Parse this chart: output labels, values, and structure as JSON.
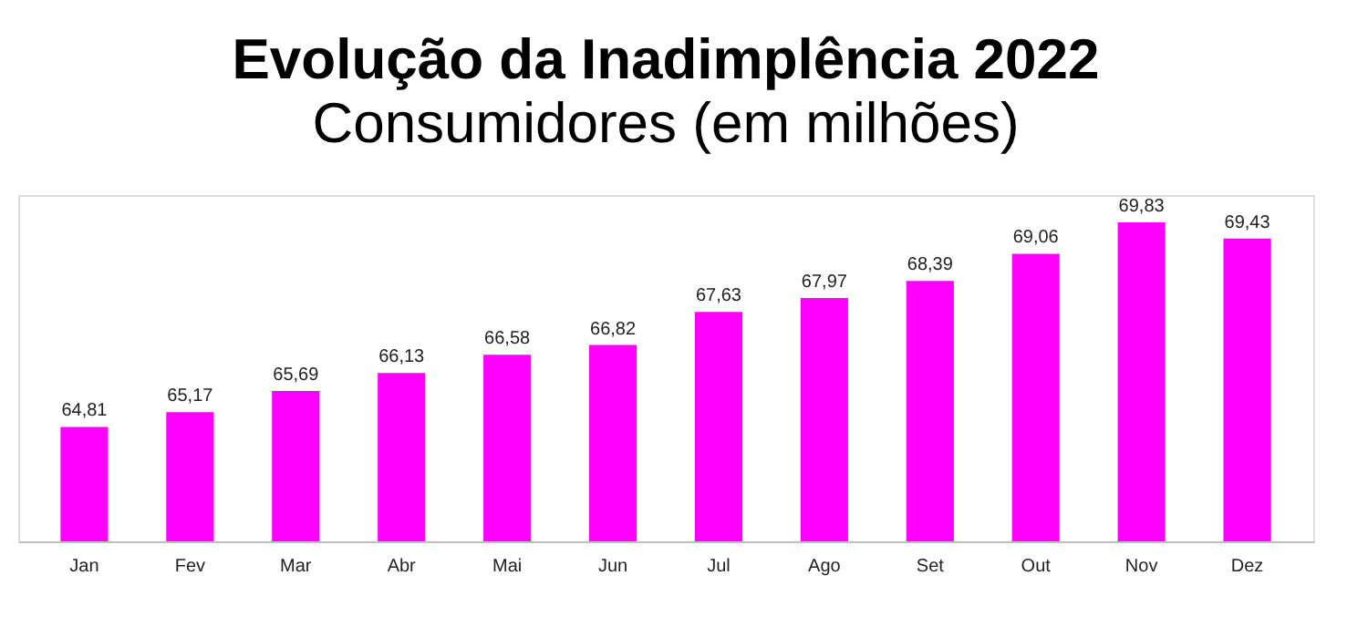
{
  "chart_data": {
    "type": "bar",
    "title": "Evolução da Inadimplência 2022",
    "subtitle": "Consumidores (em milhões)",
    "categories": [
      "Jan",
      "Fev",
      "Mar",
      "Abr",
      "Mai",
      "Jun",
      "Jul",
      "Ago",
      "Set",
      "Out",
      "Nov",
      "Dez"
    ],
    "values": [
      64.81,
      65.17,
      65.69,
      66.13,
      66.58,
      66.82,
      67.63,
      67.97,
      68.39,
      69.06,
      69.83,
      69.43
    ],
    "value_labels": [
      "64,81",
      "65,17",
      "65,69",
      "66,13",
      "66,58",
      "66,82",
      "67,63",
      "67,97",
      "68,39",
      "69,06",
      "69,83",
      "69,43"
    ],
    "color": "#ff00ff",
    "ylim": [
      62,
      70.5
    ],
    "grid": false,
    "tick_labels": "x"
  }
}
